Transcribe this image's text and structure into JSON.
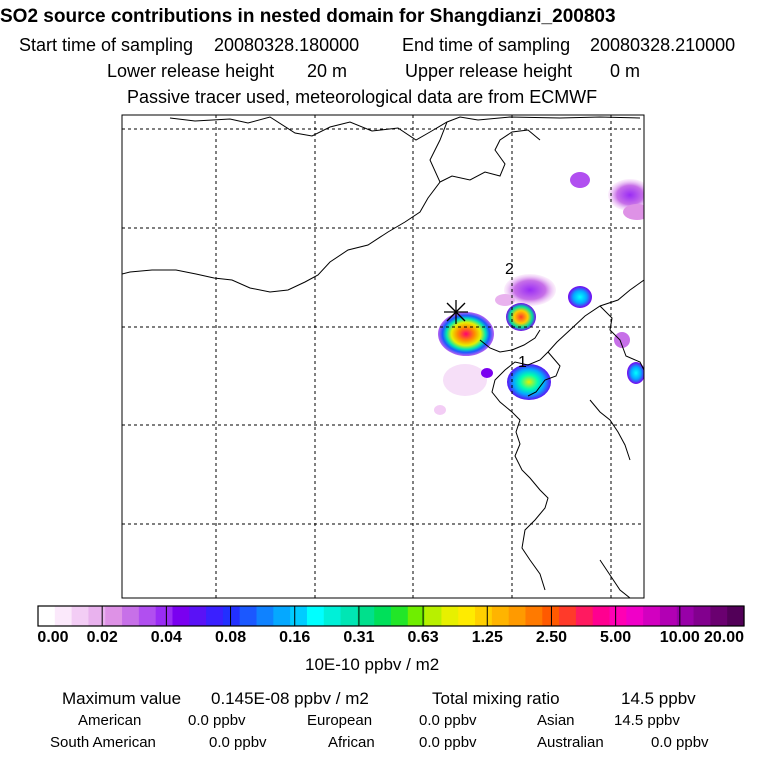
{
  "title": "SO2 source contributions in nested domain for Shangdianzi_200803",
  "header": {
    "start_label": "Start time of sampling",
    "start_value": "20080328.180000",
    "end_label": "End time of sampling",
    "end_value": "20080328.210000",
    "lower_label": "Lower release height",
    "lower_value": "20 m",
    "upper_label": "Upper release height",
    "upper_value": "0 m",
    "note": "Passive tracer used, meteorological data are from ECMWF"
  },
  "map": {
    "site_labels": [
      "1",
      "2"
    ],
    "receptor_symbol": "✳"
  },
  "colorbar": {
    "tick_labels": [
      "0.00",
      "0.02",
      "0.04",
      "0.08",
      "0.16",
      "0.31",
      "0.63",
      "1.25",
      "2.50",
      "5.00",
      "10.00",
      "20.00"
    ],
    "colors": [
      "#ffffff",
      "#fbe9fb",
      "#f3cdf5",
      "#e9b2ee",
      "#de92e6",
      "#c770e8",
      "#b14ff0",
      "#9a2cf5",
      "#7a00f0",
      "#5a12f6",
      "#3a20ff",
      "#2230ff",
      "#1b58ff",
      "#0f82ff",
      "#05a8ff",
      "#00ccff",
      "#00ffff",
      "#00f0d8",
      "#00e6b4",
      "#00e08c",
      "#00e05a",
      "#22e628",
      "#6fee00",
      "#b8f000",
      "#e7f000",
      "#ffeb00",
      "#ffd000",
      "#ffb400",
      "#ff9a00",
      "#ff7a00",
      "#ff5a00",
      "#ff3a2a",
      "#ff1a60",
      "#ff0090",
      "#ff00b4",
      "#f000c8",
      "#d200c0",
      "#b200b4",
      "#9800a8",
      "#82008e",
      "#6a0070",
      "#520058"
    ],
    "unit": "10E-10 ppbv / m2"
  },
  "footer": {
    "max_label": "Maximum value",
    "max_value": "0.145E-08 ppbv / m2",
    "total_label": "Total mixing ratio",
    "total_value": "14.5 ppbv",
    "regions": [
      {
        "name": "American",
        "value": "0.0 ppbv"
      },
      {
        "name": "European",
        "value": "0.0 ppbv"
      },
      {
        "name": "Asian",
        "value": "14.5 ppbv"
      },
      {
        "name": "South American",
        "value": "0.0 ppbv"
      },
      {
        "name": "African",
        "value": "0.0 ppbv"
      },
      {
        "name": "Australian",
        "value": "0.0 ppbv"
      }
    ]
  }
}
